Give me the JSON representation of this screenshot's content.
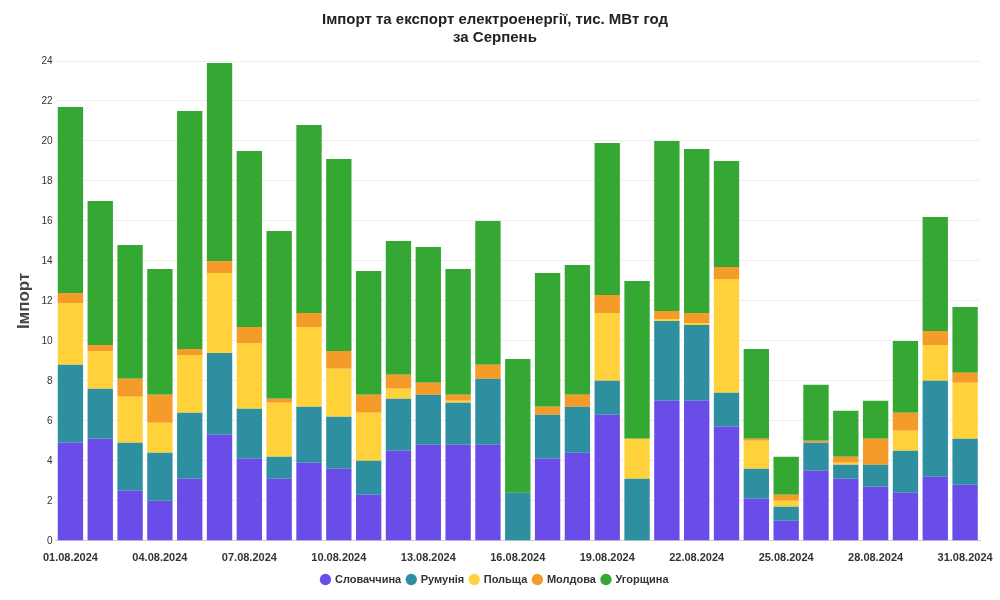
{
  "chart_data": {
    "type": "bar",
    "title": [
      "Імпорт та експорт електроенергії, тис. МВт год",
      "за Серпень"
    ],
    "y_label": "Імпорт",
    "categories": [
      "01.08.2024",
      null,
      null,
      "04.08.2024",
      null,
      null,
      "07.08.2024",
      null,
      null,
      "10.08.2024",
      null,
      null,
      "13.08.2024",
      null,
      null,
      "16.08.2024",
      null,
      null,
      "19.08.2024",
      null,
      null,
      "22.08.2024",
      null,
      null,
      "25.08.2024",
      null,
      null,
      "28.08.2024",
      null,
      null,
      "31.08.2024"
    ],
    "series": [
      {
        "name": "Словаччина",
        "color": "#6a4de8",
        "values": [
          4.9,
          5.1,
          2.5,
          2.0,
          3.1,
          5.3,
          4.1,
          3.1,
          3.9,
          3.6,
          2.3,
          4.5,
          4.8,
          4.8,
          4.8,
          0,
          4.1,
          4.4,
          6.3,
          0,
          7.0,
          7.0,
          5.7,
          2.1,
          1.0,
          3.5,
          3.1,
          2.7,
          2.4,
          3.2,
          2.8
        ]
      },
      {
        "name": "Румунія",
        "color": "#2e8fa0",
        "values": [
          3.9,
          2.5,
          2.4,
          2.4,
          3.3,
          4.1,
          2.5,
          1.1,
          2.8,
          2.6,
          1.7,
          2.6,
          2.5,
          2.1,
          3.3,
          2.4,
          2.2,
          2.3,
          1.7,
          3.1,
          4.0,
          3.8,
          1.7,
          1.5,
          0.7,
          1.4,
          0.7,
          1.1,
          2.1,
          4.8,
          2.3
        ]
      },
      {
        "name": "Польща",
        "color": "#ffd23c",
        "values": [
          3.1,
          1.9,
          2.3,
          1.5,
          2.9,
          4.0,
          3.3,
          2.7,
          4.0,
          2.4,
          2.4,
          0.5,
          0,
          0.1,
          0,
          0,
          0,
          0,
          3.4,
          2.0,
          0.1,
          0.1,
          5.7,
          1.4,
          0.3,
          0,
          0.1,
          0,
          1.0,
          1.8,
          2.8
        ]
      },
      {
        "name": "Молдова",
        "color": "#f59b2a",
        "values": [
          0.5,
          0.3,
          0.9,
          1.4,
          0.3,
          0.6,
          0.8,
          0.2,
          0.7,
          0.9,
          0.9,
          0.7,
          0.6,
          0.3,
          0.7,
          0,
          0.4,
          0.6,
          0.9,
          0,
          0.4,
          0.5,
          0.6,
          0.1,
          0.3,
          0.1,
          0.3,
          1.3,
          0.9,
          0.7,
          0.5
        ]
      },
      {
        "name": "Угорщина",
        "color": "#34a832",
        "values": [
          9.3,
          7.2,
          6.7,
          6.3,
          11.9,
          9.9,
          8.8,
          8.4,
          9.4,
          9.6,
          6.2,
          6.7,
          6.8,
          6.3,
          7.2,
          6.7,
          6.7,
          6.5,
          7.6,
          7.9,
          8.5,
          8.2,
          5.3,
          4.5,
          1.9,
          2.8,
          2.3,
          1.9,
          3.6,
          5.7,
          3.3
        ]
      }
    ],
    "ylim": [
      0,
      24
    ],
    "yticks": [
      0,
      2,
      4,
      6,
      8,
      10,
      12,
      14,
      16,
      18,
      20,
      22,
      24
    ],
    "stacked": true,
    "grid": true,
    "legend": "bottom"
  }
}
